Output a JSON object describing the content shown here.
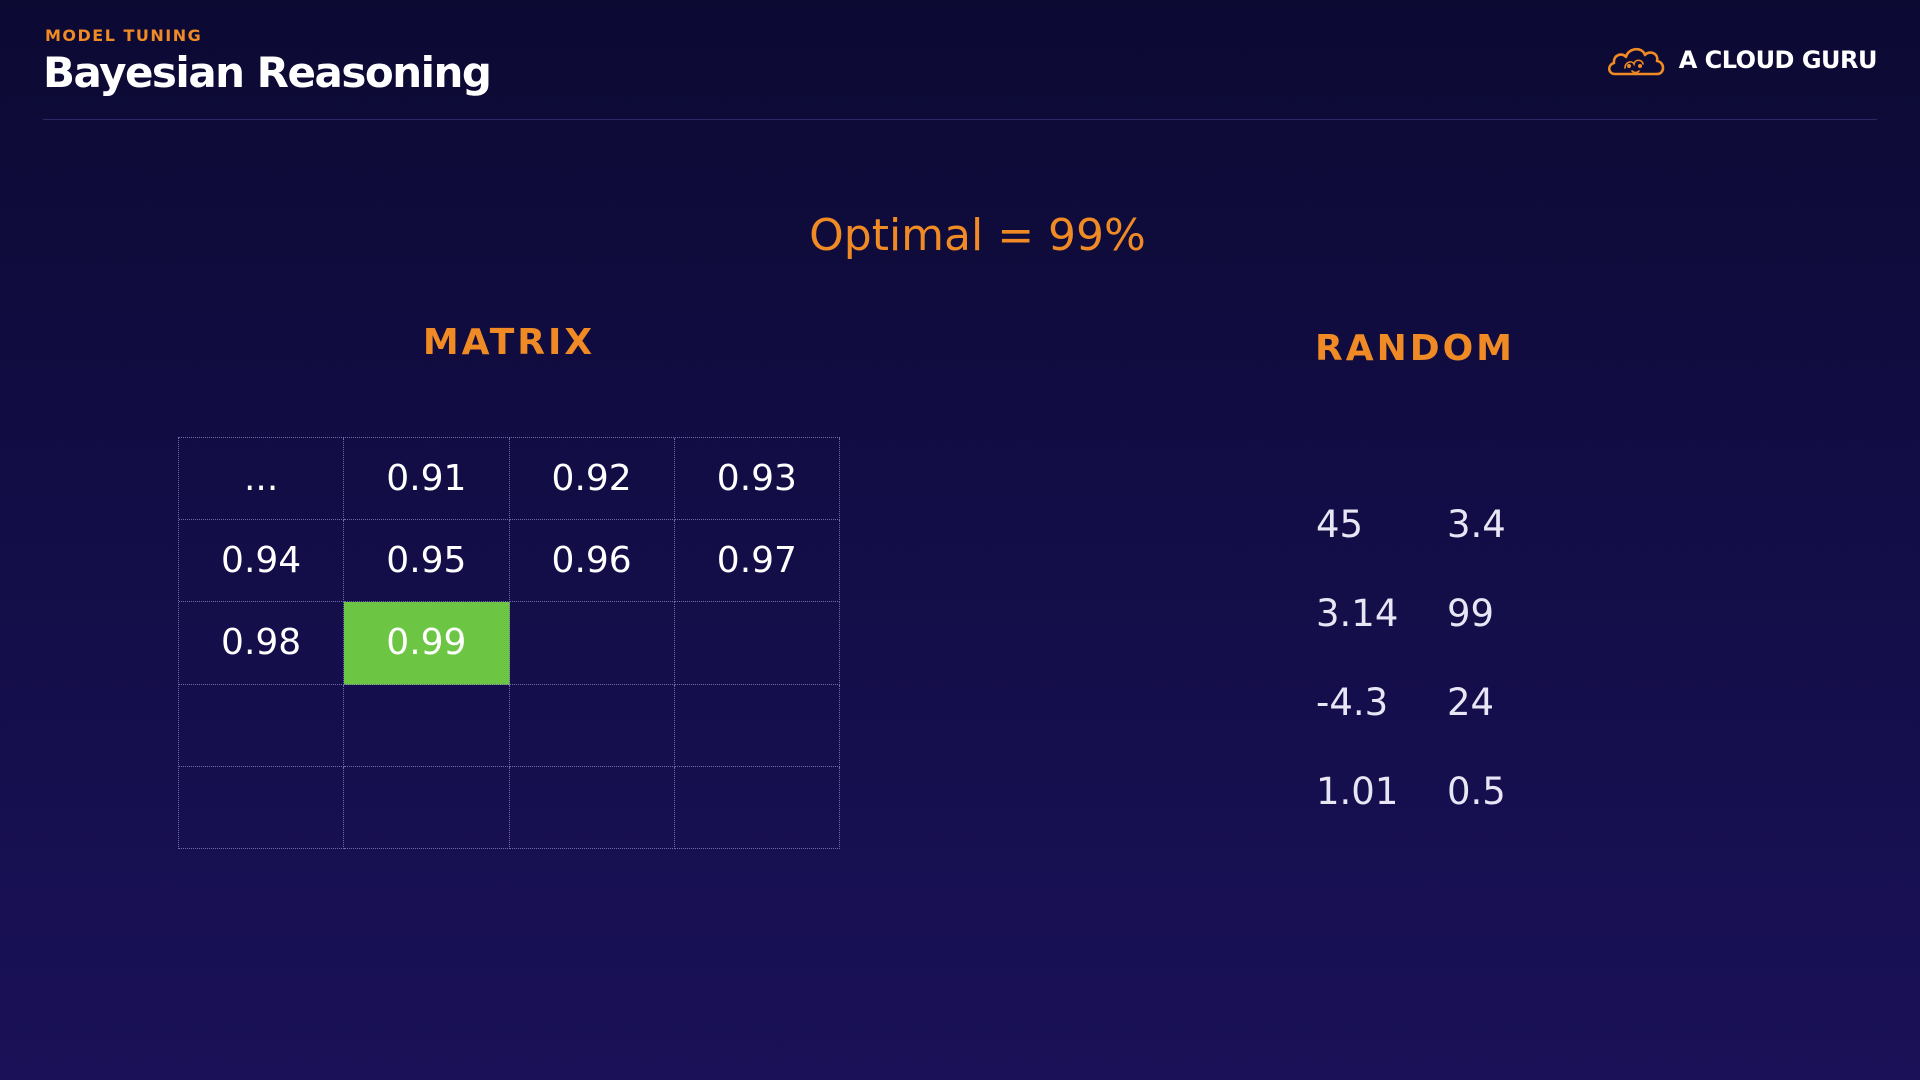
{
  "header": {
    "kicker": "MODEL TUNING",
    "title": "Bayesian Reasoning",
    "brand": {
      "name": "A CLOUD GURU",
      "icon": "cloud-logo-icon",
      "color": "#f08a24"
    }
  },
  "optimal": "Optimal = 99%",
  "matrix": {
    "title": "MATRIX",
    "highlight_color": "#6cc644",
    "rows": [
      [
        "...",
        "0.91",
        "0.92",
        "0.93"
      ],
      [
        "0.94",
        "0.95",
        "0.96",
        "0.97"
      ],
      [
        "0.98",
        "0.99",
        "",
        ""
      ],
      [
        "",
        "",
        "",
        ""
      ],
      [
        "",
        "",
        "",
        ""
      ]
    ],
    "highlight": {
      "row": 2,
      "col": 1
    }
  },
  "random": {
    "title": "RANDOM",
    "rows": [
      [
        "45",
        "3.4"
      ],
      [
        "3.14",
        "99"
      ],
      [
        "-4.3",
        "24"
      ],
      [
        "1.01",
        "0.5"
      ]
    ]
  },
  "colors": {
    "accent": "#f08a24",
    "background": "#120d45"
  }
}
